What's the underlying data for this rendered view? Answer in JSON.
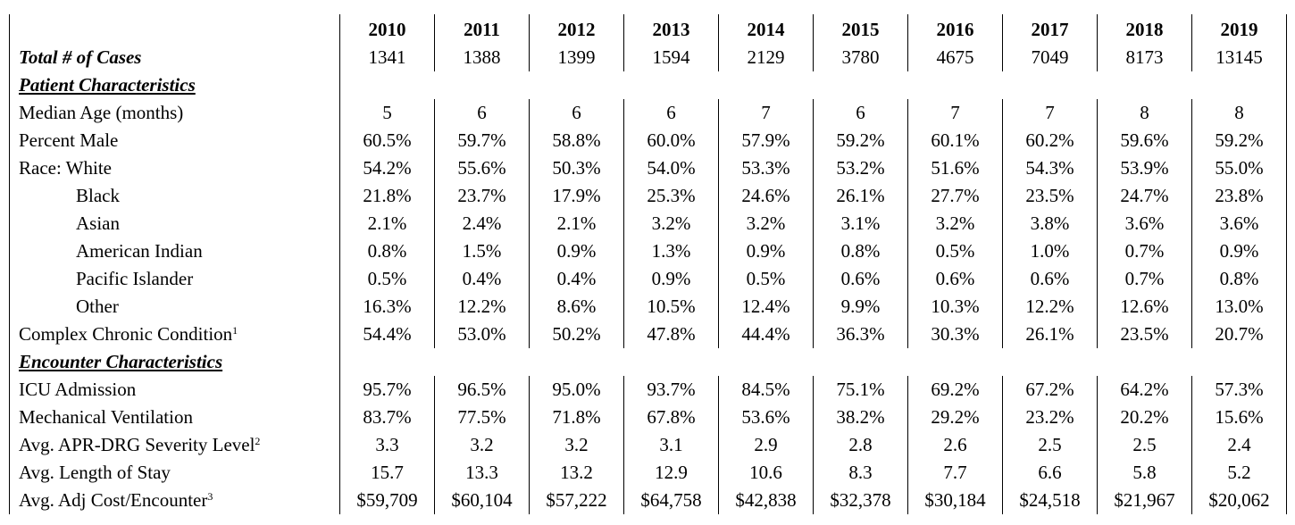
{
  "years": [
    "2010",
    "2011",
    "2012",
    "2013",
    "2014",
    "2015",
    "2016",
    "2017",
    "2018",
    "2019"
  ],
  "total_cases": {
    "label": "Total # of Cases",
    "values": [
      "1341",
      "1388",
      "1399",
      "1594",
      "2129",
      "3780",
      "4675",
      "7049",
      "8173",
      "13145"
    ]
  },
  "patient_section": {
    "title": "Patient Characteristics"
  },
  "patient_rows": [
    {
      "label": "Median Age (months)",
      "values": [
        "5",
        "6",
        "6",
        "6",
        "7",
        "6",
        "7",
        "7",
        "8",
        "8"
      ]
    },
    {
      "label": "Percent Male",
      "values": [
        "60.5%",
        "59.7%",
        "58.8%",
        "60.0%",
        "57.9%",
        "59.2%",
        "60.1%",
        "60.2%",
        "59.6%",
        "59.2%"
      ]
    },
    {
      "label": "Race: White",
      "values": [
        "54.2%",
        "55.6%",
        "50.3%",
        "54.0%",
        "53.3%",
        "53.2%",
        "51.6%",
        "54.3%",
        "53.9%",
        "55.0%"
      ]
    },
    {
      "label": "Black",
      "values": [
        "21.8%",
        "23.7%",
        "17.9%",
        "25.3%",
        "24.6%",
        "26.1%",
        "27.7%",
        "23.5%",
        "24.7%",
        "23.8%"
      ]
    },
    {
      "label": "Asian",
      "values": [
        "2.1%",
        "2.4%",
        "2.1%",
        "3.2%",
        "3.2%",
        "3.1%",
        "3.2%",
        "3.8%",
        "3.6%",
        "3.6%"
      ]
    },
    {
      "label": "American Indian",
      "values": [
        "0.8%",
        "1.5%",
        "0.9%",
        "1.3%",
        "0.9%",
        "0.8%",
        "0.5%",
        "1.0%",
        "0.7%",
        "0.9%"
      ]
    },
    {
      "label": "Pacific Islander",
      "values": [
        "0.5%",
        "0.4%",
        "0.4%",
        "0.9%",
        "0.5%",
        "0.6%",
        "0.6%",
        "0.6%",
        "0.7%",
        "0.8%"
      ]
    },
    {
      "label": "Other",
      "values": [
        "16.3%",
        "12.2%",
        "8.6%",
        "10.5%",
        "12.4%",
        "9.9%",
        "10.3%",
        "12.2%",
        "12.6%",
        "13.0%"
      ]
    },
    {
      "label": "Complex Chronic Condition",
      "sup": "1",
      "values": [
        "54.4%",
        "53.0%",
        "50.2%",
        "47.8%",
        "44.4%",
        "36.3%",
        "30.3%",
        "26.1%",
        "23.5%",
        "20.7%"
      ]
    }
  ],
  "encounter_section": {
    "title": "Encounter Characteristics"
  },
  "encounter_rows": [
    {
      "label": "ICU Admission",
      "values": [
        "95.7%",
        "96.5%",
        "95.0%",
        "93.7%",
        "84.5%",
        "75.1%",
        "69.2%",
        "67.2%",
        "64.2%",
        "57.3%"
      ]
    },
    {
      "label": "Mechanical Ventilation",
      "values": [
        "83.7%",
        "77.5%",
        "71.8%",
        "67.8%",
        "53.6%",
        "38.2%",
        "29.2%",
        "23.2%",
        "20.2%",
        "15.6%"
      ]
    },
    {
      "label": "Avg. APR-DRG Severity Level",
      "sup": "2",
      "values": [
        "3.3",
        "3.2",
        "3.2",
        "3.1",
        "2.9",
        "2.8",
        "2.6",
        "2.5",
        "2.5",
        "2.4"
      ]
    },
    {
      "label": "Avg. Length of Stay",
      "values": [
        "15.7",
        "13.3",
        "13.2",
        "12.9",
        "10.6",
        "8.3",
        "7.7",
        "6.6",
        "5.8",
        "5.2"
      ]
    },
    {
      "label": "Avg. Adj Cost/Encounter",
      "sup": "3",
      "values": [
        "$59,709",
        "$60,104",
        "$57,222",
        "$64,758",
        "$42,838",
        "$32,378",
        "$30,184",
        "$24,518",
        "$21,967",
        "$20,062"
      ]
    }
  ]
}
